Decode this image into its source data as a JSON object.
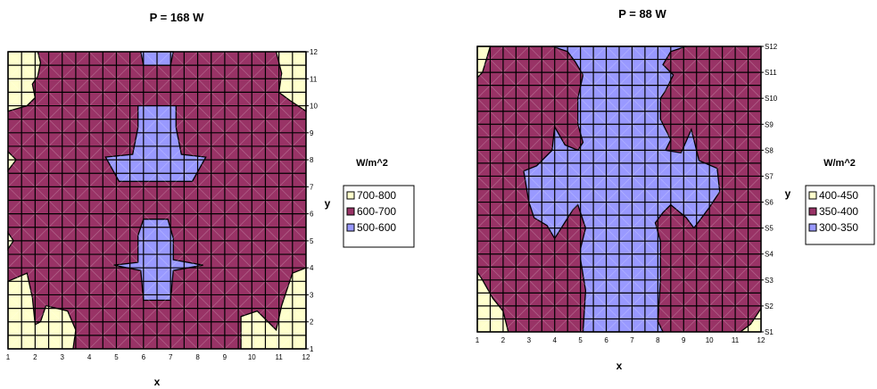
{
  "chart_data": [
    {
      "type": "heatmap",
      "subtype": "contour",
      "title": "P = 168 W",
      "xlabel": "x",
      "ylabel": "y",
      "x_ticks": [
        "1",
        "2",
        "3",
        "4",
        "5",
        "6",
        "7",
        "8",
        "9",
        "10",
        "11",
        "12"
      ],
      "y_ticks": [
        "1",
        "2",
        "3",
        "4",
        "5",
        "6",
        "7",
        "8",
        "9",
        "10",
        "11",
        "12"
      ],
      "xlim": [
        1,
        12
      ],
      "ylim": [
        1,
        12
      ],
      "grid": true,
      "legend_title": "W/m^2",
      "legend_position": "right",
      "legend": [
        {
          "label": "700-800",
          "color": "#FFFFCC"
        },
        {
          "label": "600-700",
          "color": "#993366"
        },
        {
          "label": "500-600",
          "color": "#9999FF"
        }
      ],
      "regions": [
        {
          "level": "500-600",
          "polygon": [
            [
              5.6,
              8.2
            ],
            [
              5.8,
              9.2
            ],
            [
              5.8,
              10
            ],
            [
              7.2,
              10
            ],
            [
              7.2,
              9.2
            ],
            [
              7.4,
              8.2
            ],
            [
              8.3,
              8.1
            ],
            [
              7.8,
              7.2
            ],
            [
              5.1,
              7.2
            ],
            [
              4.6,
              8.1
            ]
          ]
        },
        {
          "level": "500-600",
          "polygon": [
            [
              6,
              5.8
            ],
            [
              5.8,
              5.2
            ],
            [
              5.8,
              4.2
            ],
            [
              4.9,
              4.1
            ],
            [
              5.9,
              3.9
            ],
            [
              6,
              2.8
            ],
            [
              7,
              2.8
            ],
            [
              7.1,
              3.9
            ],
            [
              8.2,
              4.1
            ],
            [
              7.1,
              4.3
            ],
            [
              7.1,
              5.1
            ],
            [
              6.9,
              5.8
            ]
          ]
        },
        {
          "level": "500-600",
          "polygon": [
            [
              5.9,
              12
            ],
            [
              6,
              11.5
            ],
            [
              7,
              11.5
            ],
            [
              7.1,
              12
            ]
          ]
        },
        {
          "level": "700-800",
          "polygon": [
            [
              1,
              12
            ],
            [
              2.1,
              12
            ],
            [
              2.2,
              11.6
            ],
            [
              2.1,
              11.1
            ],
            [
              1.9,
              10.8
            ],
            [
              2,
              10.3
            ],
            [
              1.7,
              10
            ],
            [
              1,
              9.8
            ]
          ]
        },
        {
          "level": "700-800",
          "polygon": [
            [
              10.9,
              12
            ],
            [
              12,
              12
            ],
            [
              12,
              9.8
            ],
            [
              11.4,
              10.2
            ],
            [
              11,
              10.5
            ],
            [
              11.1,
              11.2
            ]
          ]
        },
        {
          "level": "700-800",
          "polygon": [
            [
              1,
              1
            ],
            [
              3.4,
              1
            ],
            [
              3.5,
              1.7
            ],
            [
              3.2,
              2.4
            ],
            [
              2.4,
              2.6
            ],
            [
              2.2,
              2
            ],
            [
              2,
              1.9
            ],
            [
              1.9,
              2.9
            ],
            [
              1.7,
              3.8
            ],
            [
              1,
              3.5
            ]
          ]
        },
        {
          "level": "700-800",
          "polygon": [
            [
              9.6,
              1
            ],
            [
              12,
              1
            ],
            [
              12,
              4
            ],
            [
              11.5,
              3.8
            ],
            [
              11.1,
              2.6
            ],
            [
              10.9,
              1.7
            ],
            [
              10.2,
              2.4
            ],
            [
              9.6,
              2.2
            ]
          ]
        },
        {
          "level": "700-800",
          "polygon": [
            [
              1,
              8.3
            ],
            [
              1.3,
              8
            ],
            [
              1,
              7.6
            ]
          ]
        },
        {
          "level": "700-800",
          "polygon": [
            [
              1,
              5.3
            ],
            [
              1.2,
              5
            ],
            [
              1,
              4.7
            ]
          ]
        }
      ]
    },
    {
      "type": "heatmap",
      "subtype": "contour",
      "title": "P = 88 W",
      "xlabel": "x",
      "ylabel": "y",
      "x_ticks": [
        "1",
        "2",
        "3",
        "4",
        "5",
        "6",
        "7",
        "8",
        "9",
        "10",
        "11",
        "12"
      ],
      "y_ticks": [
        "S1",
        "S2",
        "S3",
        "S4",
        "S5",
        "S6",
        "S7",
        "S8",
        "S9",
        "S10",
        "S11",
        "S12"
      ],
      "xlim": [
        1,
        12
      ],
      "ylim": [
        1,
        12
      ],
      "grid": true,
      "legend_title": "W/m^2",
      "legend_position": "right",
      "legend": [
        {
          "label": "400-450",
          "color": "#FFFFCC"
        },
        {
          "label": "350-400",
          "color": "#993366"
        },
        {
          "label": "300-350",
          "color": "#9999FF"
        }
      ],
      "regions": [
        {
          "level": "300-350",
          "polygon": [
            [
              3.9,
              12
            ],
            [
              9.1,
              12
            ],
            [
              8.5,
              11.8
            ],
            [
              8.2,
              11.3
            ],
            [
              8.6,
              10.9
            ],
            [
              8.3,
              10.3
            ],
            [
              8.1,
              10
            ],
            [
              8.1,
              9.2
            ],
            [
              8.5,
              8.4
            ],
            [
              8.3,
              8
            ],
            [
              8.9,
              7.9
            ],
            [
              9.3,
              8.8
            ],
            [
              9.6,
              7.6
            ],
            [
              10.3,
              7.3
            ],
            [
              10.4,
              6.4
            ],
            [
              10,
              5.8
            ],
            [
              9.4,
              5
            ],
            [
              9.1,
              5.4
            ],
            [
              8.5,
              5.9
            ],
            [
              8.2,
              5.6
            ],
            [
              7.9,
              5.2
            ],
            [
              8.1,
              4.5
            ],
            [
              8.1,
              3
            ],
            [
              8,
              1.4
            ],
            [
              8.2,
              1
            ],
            [
              5.1,
              1
            ],
            [
              5.2,
              2.6
            ],
            [
              5,
              3.8
            ],
            [
              5,
              4.2
            ],
            [
              5.2,
              5
            ],
            [
              4.9,
              5.9
            ],
            [
              4.7,
              5.7
            ],
            [
              4,
              4.6
            ],
            [
              3.7,
              5.1
            ],
            [
              3.2,
              5.4
            ],
            [
              3,
              6
            ],
            [
              2.8,
              7.2
            ],
            [
              3.3,
              7.4
            ],
            [
              3.9,
              8
            ],
            [
              4,
              8.9
            ],
            [
              4.4,
              8.2
            ],
            [
              4.9,
              8
            ],
            [
              5.1,
              8.3
            ],
            [
              4.9,
              9
            ],
            [
              4.9,
              10
            ],
            [
              5.1,
              10.9
            ],
            [
              4.8,
              11.4
            ],
            [
              4.5,
              11.8
            ]
          ]
        },
        {
          "level": "400-450",
          "polygon": [
            [
              1,
              12
            ],
            [
              1.5,
              12
            ],
            [
              1.2,
              11
            ],
            [
              1,
              10.8
            ]
          ]
        },
        {
          "level": "400-450",
          "polygon": [
            [
              1,
              1
            ],
            [
              2.2,
              1
            ],
            [
              2,
              1.8
            ],
            [
              1.6,
              2.3
            ],
            [
              1.2,
              3
            ],
            [
              1,
              3.3
            ]
          ]
        },
        {
          "level": "400-450",
          "polygon": [
            [
              11.2,
              1
            ],
            [
              12,
              1
            ],
            [
              12,
              1.9
            ],
            [
              11.6,
              1.3
            ]
          ]
        }
      ]
    }
  ]
}
